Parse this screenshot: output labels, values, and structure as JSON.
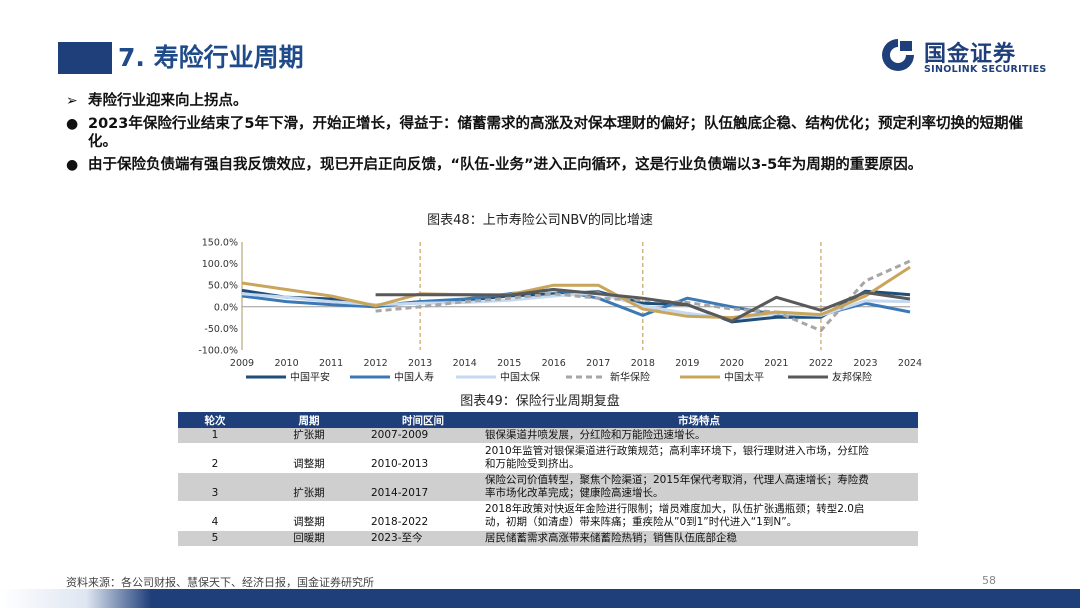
{
  "header": {
    "title": "7. 寿险行业周期",
    "logo_cn": "国金证券",
    "logo_en": "SINOLINK SECURITIES"
  },
  "bullets": [
    {
      "marker": "➢",
      "text": "寿险行业迎来向上拐点。"
    },
    {
      "marker": "●",
      "text": "2023年保险行业结束了5年下滑，开始正增长，得益于：储蓄需求的高涨及对保本理财的偏好；队伍触底企稳、结构优化；预定利率切换的短期催化。"
    },
    {
      "marker": "●",
      "text": "由于保险负债端有强自我反馈效应，现已开启正向反馈，“队伍-业务”进入正向循环，这是行业负债端以3-5年为周期的重要原因。"
    }
  ],
  "figure48_title": "图表48：上市寿险公司NBV的同比增速",
  "figure49_title": "图表49：保险行业周期复盘",
  "chart_data": {
    "type": "line",
    "x": [
      "2009",
      "2010",
      "2011",
      "2012",
      "2013",
      "2014",
      "2015",
      "2016",
      "2017",
      "2018",
      "2019",
      "2020",
      "2021",
      "2022",
      "2023",
      "2024"
    ],
    "y_ticks": [
      "150.0%",
      "100.0%",
      "50.0%",
      "0.0%",
      "-50.0%",
      "-100.0%"
    ],
    "ylim": [
      -100,
      150
    ],
    "highlight_years": [
      "2009",
      "2013",
      "2018",
      "2022"
    ],
    "series": [
      {
        "name": "中国平安",
        "color": "#1e4e79",
        "dash": "",
        "values": [
          38,
          22,
          18,
          2,
          12,
          15,
          25,
          30,
          35,
          8,
          5,
          -35,
          -24,
          -24,
          36,
          28
        ]
      },
      {
        "name": "中国人寿",
        "color": "#3a78b6",
        "dash": "",
        "values": [
          25,
          12,
          5,
          0,
          12,
          18,
          30,
          40,
          20,
          -20,
          20,
          0,
          -18,
          -19,
          8,
          -12
        ]
      },
      {
        "name": "中国太保",
        "color": "#c5d9f1",
        "dash": "",
        "values": [
          30,
          22,
          12,
          5,
          8,
          10,
          15,
          25,
          32,
          2,
          -15,
          -28,
          -15,
          -20,
          14,
          12
        ]
      },
      {
        "name": "新华保险",
        "color": "#a6a6a6",
        "dash": "6,4",
        "values": [
          null,
          null,
          null,
          -10,
          0,
          12,
          20,
          30,
          20,
          15,
          10,
          -5,
          -12,
          -55,
          60,
          106
        ]
      },
      {
        "name": "中国太平",
        "color": "#c9a55c",
        "dash": "",
        "values": [
          55,
          40,
          25,
          2,
          30,
          28,
          28,
          50,
          50,
          -5,
          -22,
          -25,
          -12,
          -18,
          25,
          92
        ]
      },
      {
        "name": "友邦保险",
        "color": "#595959",
        "dash": "",
        "values": [
          null,
          null,
          null,
          28,
          28,
          28,
          27,
          40,
          30,
          20,
          5,
          -33,
          22,
          -8,
          33,
          18
        ]
      }
    ]
  },
  "table": {
    "headers": [
      "轮次",
      "周期",
      "时间区间",
      "市场特点"
    ],
    "rows": [
      {
        "round": "1",
        "period": "扩张期",
        "range": "2007-2009",
        "desc": [
          "银保渠道井喷发展，分红险和万能险迅速增长。"
        ]
      },
      {
        "round": "2",
        "period": "调整期",
        "range": "2010-2013",
        "desc": [
          "2010年监管对银保渠道进行政策规范；高利率环境下，银行理财进入市场，分红险",
          "和万能险受到挤出。"
        ]
      },
      {
        "round": "3",
        "period": "扩张期",
        "range": "2014-2017",
        "desc": [
          "保险公司价值转型，聚焦个险渠道；2015年保代考取消，代理人高速增长；寿险费",
          "率市场化改革完成；健康险高速增长。"
        ]
      },
      {
        "round": "4",
        "period": "调整期",
        "range": "2018-2022",
        "desc": [
          "2018年政策对快返年金险进行限制；增员难度加大，队伍扩张遇瓶颈；转型2.0启",
          "动，初期（如清虚）带来阵痛；重疾险从”0到1”时代进入“1到N”。"
        ]
      },
      {
        "round": "5",
        "period": "回暖期",
        "range": "2023-至今",
        "desc": [
          "居民储蓄需求高涨带来储蓄险热销；销售队伍底部企稳"
        ]
      }
    ]
  },
  "footer": {
    "source": "资料来源：各公司财报、慧保天下、经济日报，国金证券研究所",
    "page": "58"
  }
}
